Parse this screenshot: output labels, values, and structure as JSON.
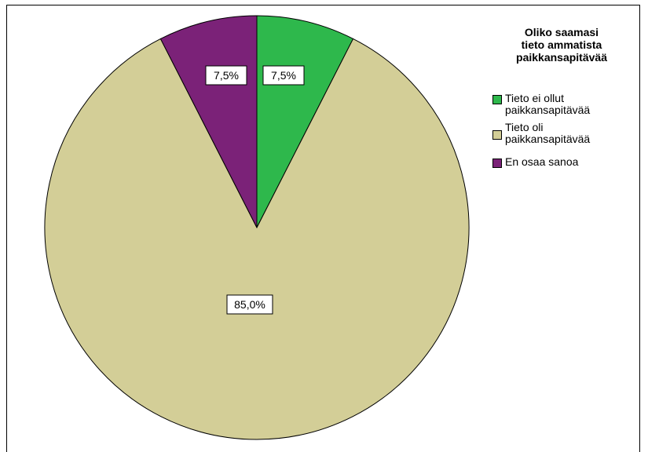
{
  "chart_data": {
    "type": "pie",
    "legend_title": [
      "Oliko saamasi",
      "tieto ammatista",
      "paikkansapitävää"
    ],
    "legend_position": "top-right",
    "slices": [
      {
        "name": "Tieto ei ollut paikkansapitävää",
        "legend_lines": [
          "Tieto ei ollut",
          "paikkansapitävää"
        ],
        "value": 7.5,
        "label": "7,5%",
        "color": "#2eb84c"
      },
      {
        "name": "Tieto oli paikkansapitävää",
        "legend_lines": [
          "Tieto oli",
          "paikkansapitävää"
        ],
        "value": 85.0,
        "label": "85,0%",
        "color": "#d3ce97"
      },
      {
        "name": "En osaa sanoa",
        "legend_lines": [
          "En osaa sanoa"
        ],
        "value": 7.5,
        "label": "7,5%",
        "color": "#7b2278"
      }
    ]
  }
}
